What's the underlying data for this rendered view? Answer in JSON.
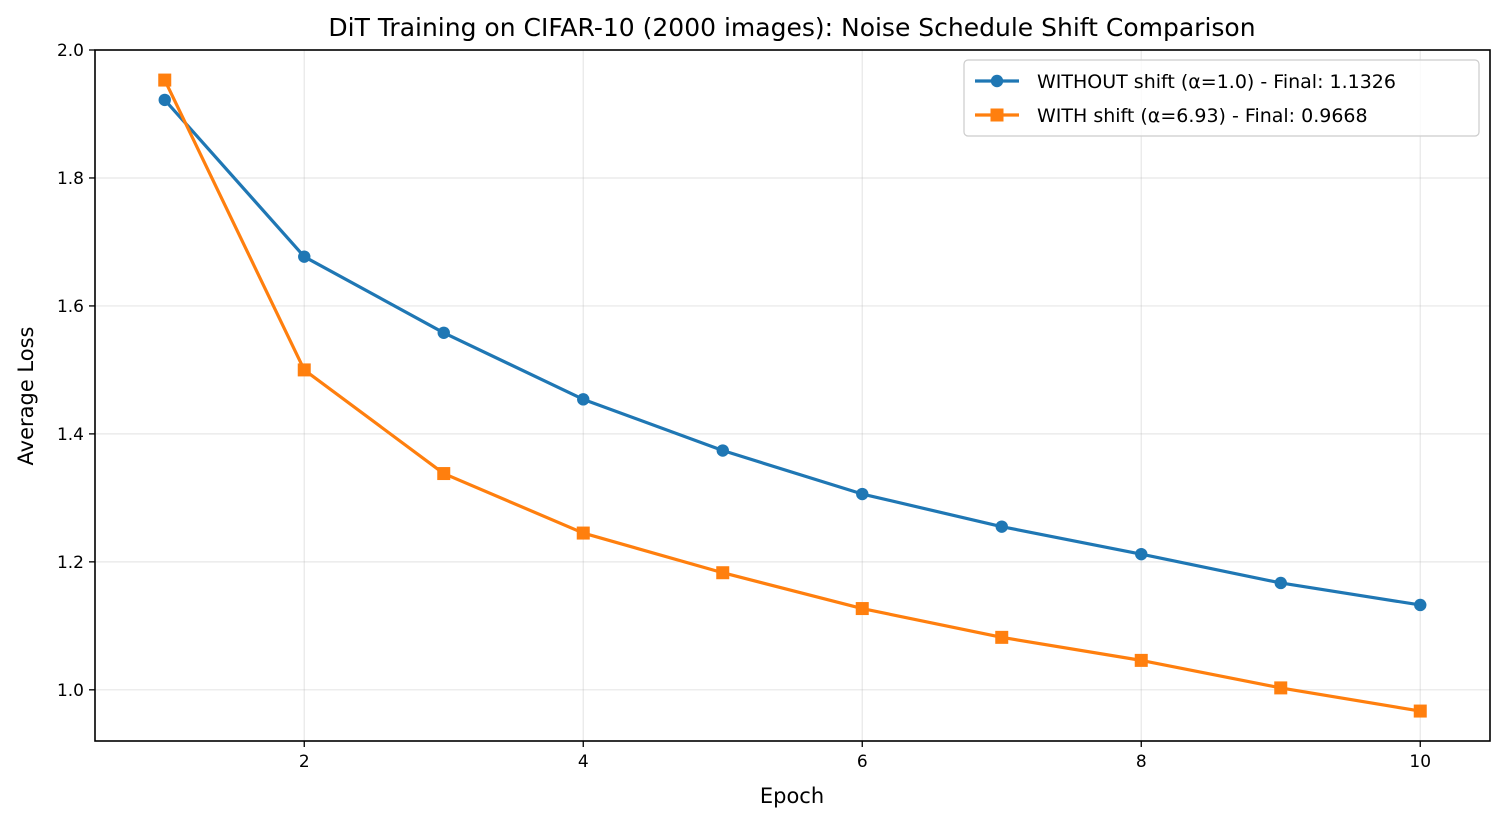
{
  "chart_data": {
    "type": "line",
    "title": "DiT Training on CIFAR-10 (2000 images): Noise Schedule Shift Comparison",
    "xlabel": "Epoch",
    "ylabel": "Average Loss",
    "xlim": [
      0.5,
      10.5
    ],
    "ylim": [
      0.92,
      2.0
    ],
    "xticks": [
      2,
      4,
      6,
      8,
      10
    ],
    "xtick_labels": [
      "2",
      "4",
      "6",
      "8",
      "10"
    ],
    "yticks": [
      1.0,
      1.2,
      1.4,
      1.6,
      1.8,
      2.0
    ],
    "ytick_labels": [
      "1.0",
      "1.2",
      "1.4",
      "1.6",
      "1.8",
      "2.0"
    ],
    "grid": true,
    "legend_position": "top-right",
    "x": [
      1,
      2,
      3,
      4,
      5,
      6,
      7,
      8,
      9,
      10
    ],
    "series": [
      {
        "name": "WITHOUT shift (α=1.0) - Final: 1.1326",
        "color": "#1f77b4",
        "marker": "circle",
        "values": [
          1.922,
          1.677,
          1.558,
          1.454,
          1.374,
          1.306,
          1.255,
          1.212,
          1.167,
          1.1326
        ]
      },
      {
        "name": "WITH shift (α=6.93) - Final: 0.9668",
        "color": "#ff7f0e",
        "marker": "square",
        "values": [
          1.953,
          1.5,
          1.338,
          1.245,
          1.183,
          1.127,
          1.082,
          1.046,
          1.003,
          0.9668
        ]
      }
    ]
  }
}
